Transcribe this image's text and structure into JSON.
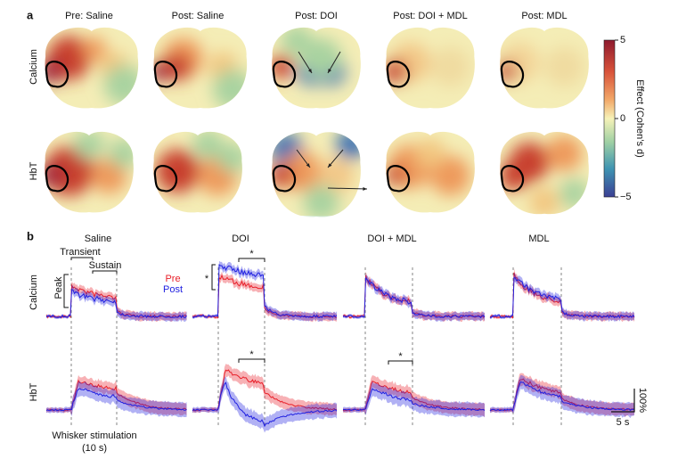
{
  "panel_a": {
    "label": "a",
    "columns": [
      "Pre: Saline",
      "Post: Saline",
      "Post: DOI",
      "Post: DOI + MDL",
      "Post: MDL"
    ],
    "rows": [
      "Calcium",
      "HbT"
    ],
    "colorbar": {
      "label": "Effect (Cohen’s d)",
      "lim": [
        -5,
        5
      ],
      "ticks": [
        5,
        0,
        {
          "value": -5,
          "label": "−5"
        }
      ]
    }
  },
  "panel_b": {
    "label": "b",
    "columns": [
      "Saline",
      "DOI",
      "DOI + MDL",
      "MDL"
    ],
    "rows": [
      "Calcium",
      "HbT"
    ],
    "annotations": {
      "transient": "Transient",
      "sustain": "Sustain",
      "peak": "Peak",
      "significance": "*"
    },
    "legend": [
      {
        "name": "Pre",
        "color": "#e8202a"
      },
      {
        "name": "Post",
        "color": "#2020e0"
      }
    ],
    "scale_bars": {
      "y": "100%",
      "x": "5 s"
    },
    "stimulation": {
      "label": "Whisker stimulation",
      "duration": "(10 s)"
    }
  }
}
